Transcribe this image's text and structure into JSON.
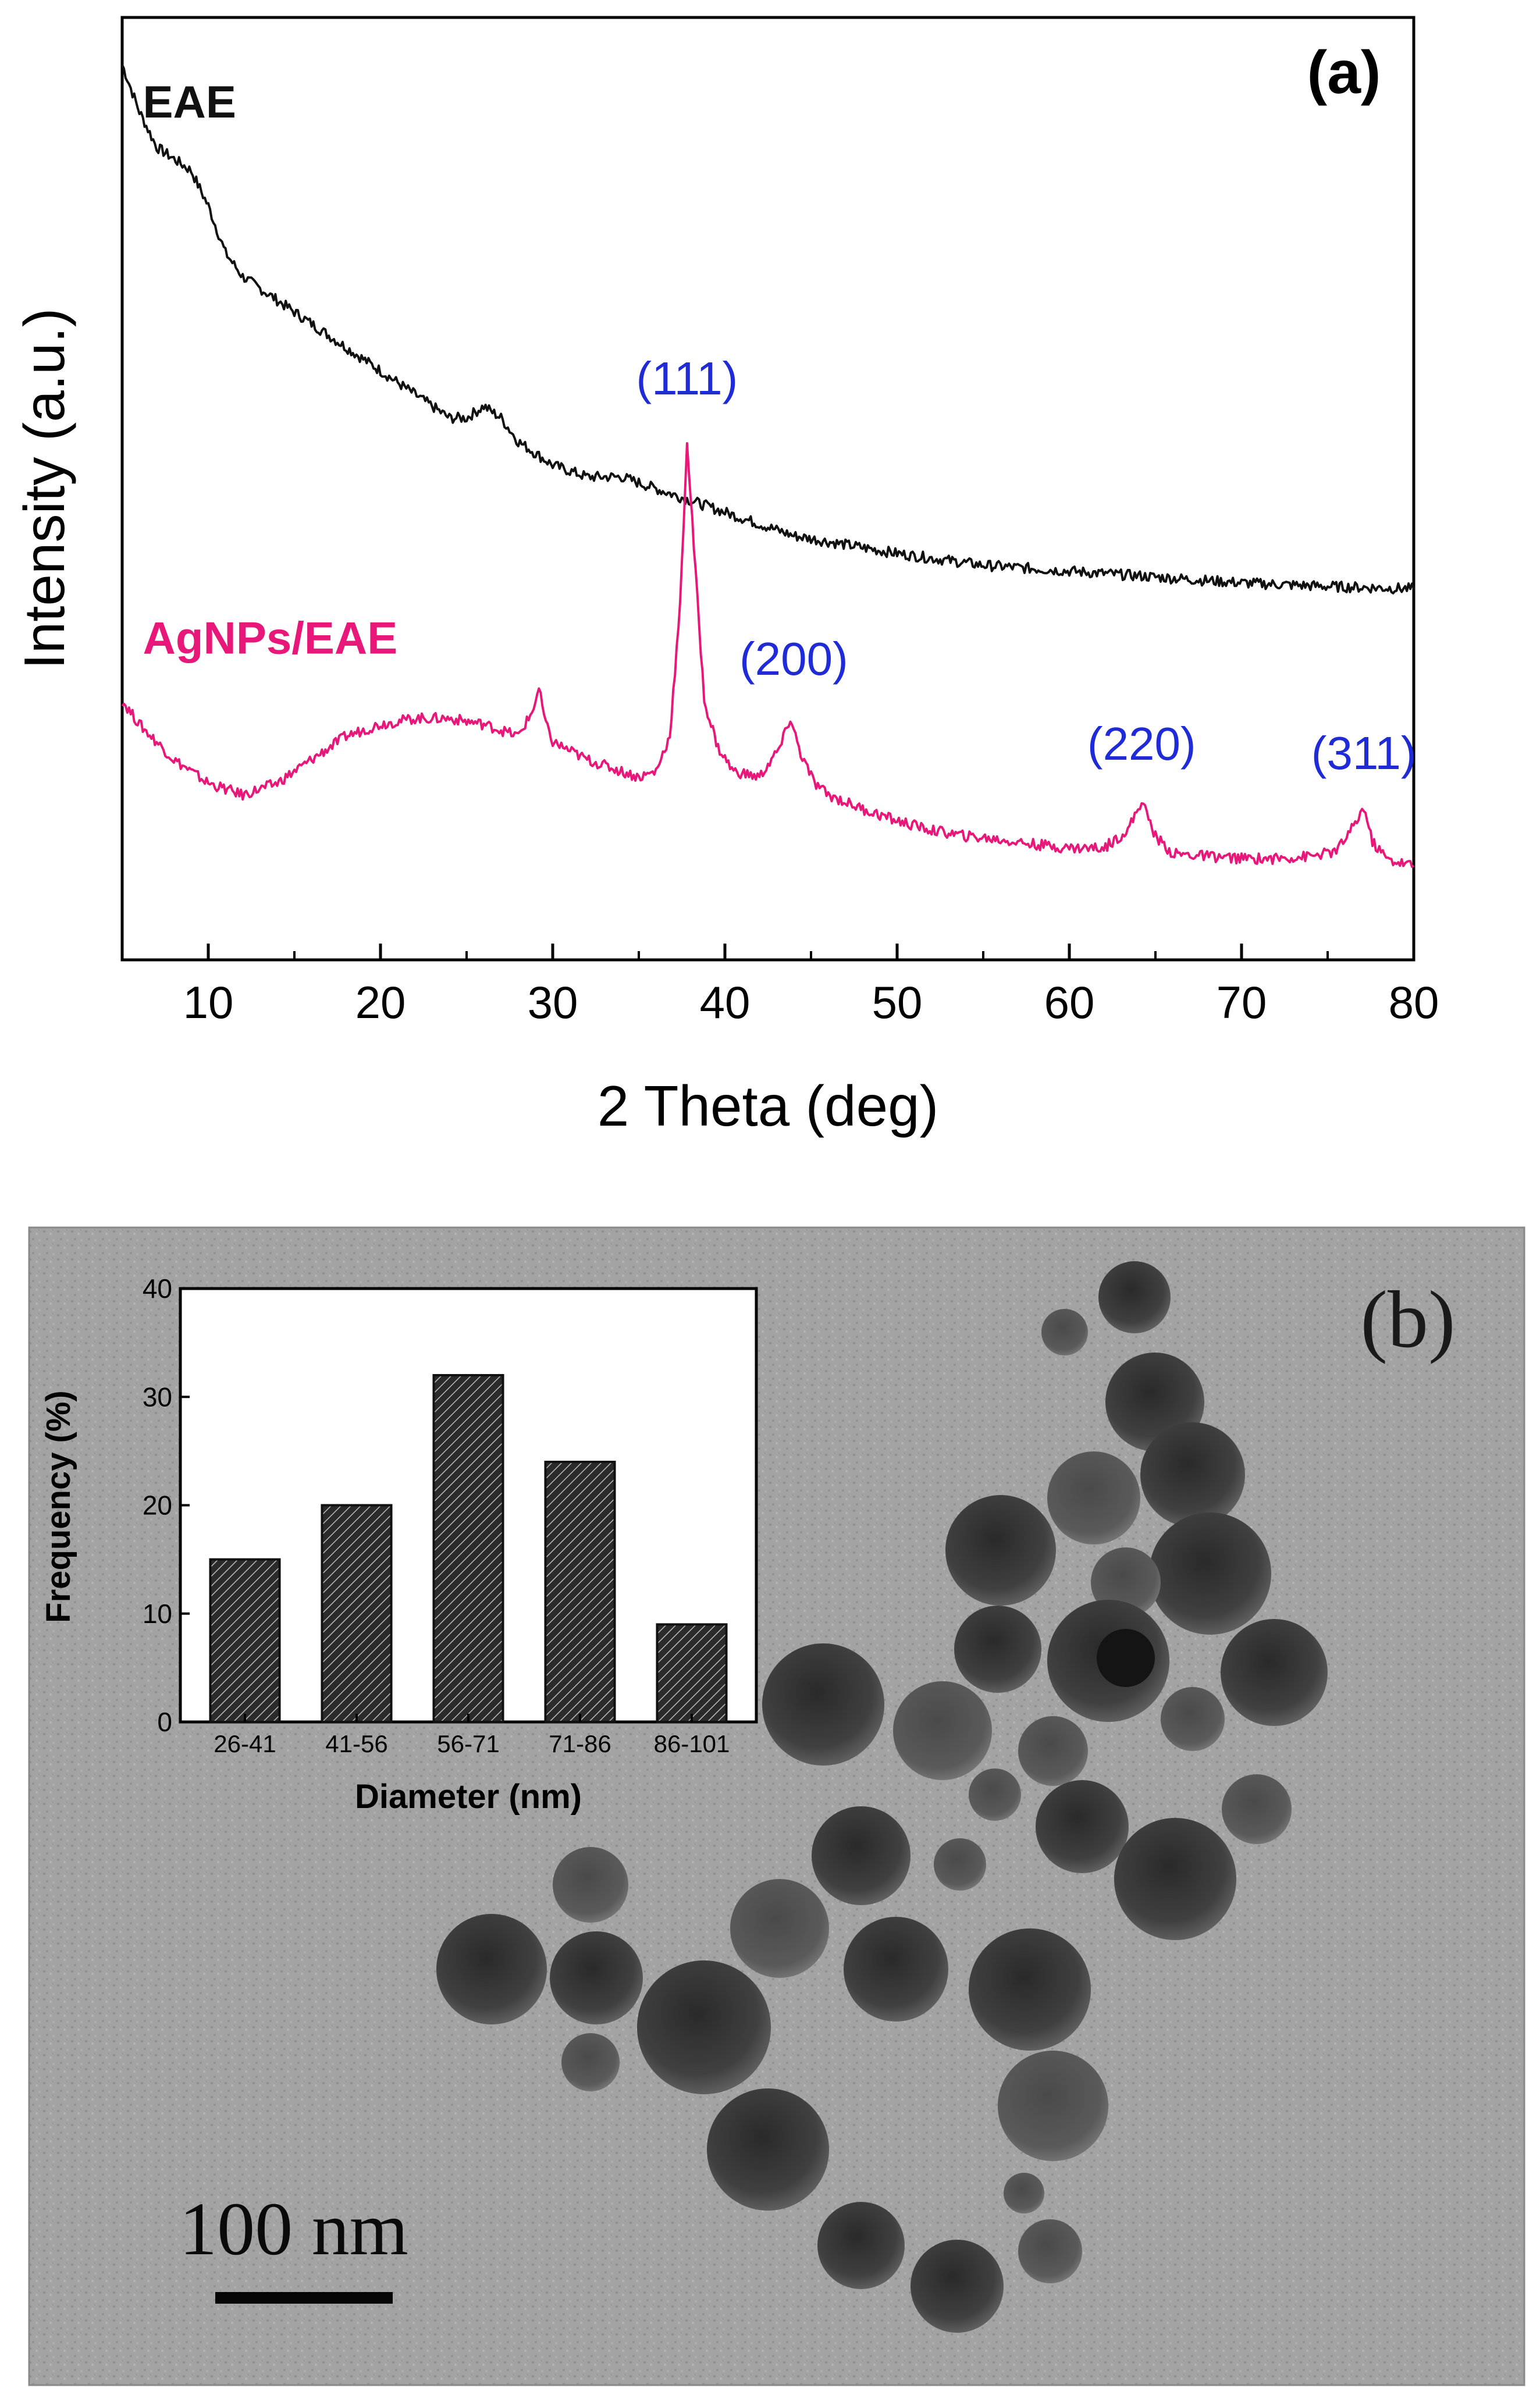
{
  "panel_a": {
    "label": "(a)",
    "colors": {
      "eae": "#111111",
      "agnps": "#e8187a",
      "peaks": "#1f2bd6",
      "axis": "#000000"
    }
  },
  "panel_b": {
    "label": "(b)",
    "scale_bar_label": "100 nm",
    "colors": {
      "background": "#a3a3a3",
      "particles": "#3a3a3a",
      "bars": "#2b2b2b",
      "hatch": "#bdbdbd"
    }
  },
  "chart_data": [
    {
      "type": "line",
      "title": "(a)",
      "xlabel": "2 Theta (deg)",
      "ylabel": "Intensity (a.u.)",
      "xlim": [
        5,
        80
      ],
      "xticks": [
        10,
        20,
        30,
        40,
        50,
        60,
        70,
        80
      ],
      "yticks_shown": false,
      "series": [
        {
          "name": "EAE",
          "color": "#111111",
          "x": [
            5,
            6,
            7,
            8,
            9,
            10,
            11,
            12,
            14,
            16,
            18,
            20,
            22,
            24,
            25,
            26,
            27,
            28,
            30,
            32,
            34,
            36,
            38,
            40,
            42,
            44,
            46,
            48,
            50,
            55,
            60,
            65,
            70,
            75,
            80
          ],
          "y": [
            96,
            92,
            89,
            88,
            87,
            84,
            80,
            78,
            76,
            74,
            72,
            70,
            68,
            66,
            66,
            67,
            66,
            64,
            62,
            61,
            61,
            60,
            59,
            58,
            57,
            56,
            55.5,
            55,
            54.5,
            53.5,
            53,
            52.5,
            52,
            51.7,
            51.5
          ]
        },
        {
          "name": "AgNPs/EAE",
          "color": "#e8187a",
          "x": [
            5,
            6,
            8,
            10,
            12,
            14,
            16,
            18,
            20,
            22,
            24,
            26,
            28,
            28.8,
            29.2,
            29.6,
            30,
            32,
            34,
            35,
            36,
            36.8,
            37.4,
            37.8,
            38.2,
            38.8,
            39.6,
            40.5,
            42,
            43.2,
            43.8,
            44.4,
            45.2,
            46,
            48,
            50,
            52,
            54,
            56,
            58,
            60,
            62,
            63.4,
            64.2,
            65,
            66,
            68,
            70,
            72,
            74,
            75.5,
            76.6,
            77.1,
            77.6,
            78.5,
            80
          ],
          "y": [
            42,
            40,
            37,
            35,
            34,
            35,
            37,
            39,
            40,
            40.5,
            40.5,
            40,
            39,
            41,
            43,
            40,
            38.5,
            37,
            36,
            35.5,
            36,
            39,
            50,
            64,
            55,
            42,
            38,
            36,
            35.5,
            38,
            40.5,
            37.5,
            35,
            34,
            32.8,
            31.8,
            31,
            30.5,
            30.2,
            29.8,
            29.5,
            29.5,
            31,
            33.5,
            30.5,
            29,
            28.8,
            28.6,
            28.6,
            28.8,
            29.2,
            31.5,
            33,
            30,
            28.5,
            28
          ]
        }
      ],
      "annotations": [
        {
          "text": "EAE",
          "color": "#111111",
          "x": 6.2,
          "y": 91.5
        },
        {
          "text": "AgNPs/EAE",
          "color": "#e8187a",
          "x": 6.2,
          "y": 46
        },
        {
          "text": "(111)",
          "color": "#1f2bd6",
          "x": 37.8,
          "y": 68
        },
        {
          "text": "(200)",
          "color": "#1f2bd6",
          "x": 44,
          "y": 44.2
        },
        {
          "text": "(220)",
          "color": "#1f2bd6",
          "x": 64.2,
          "y": 37
        },
        {
          "text": "(311)",
          "color": "#1f2bd6",
          "x": 77.1,
          "y": 36.2
        }
      ],
      "ylim": [
        20,
        100
      ]
    },
    {
      "type": "bar",
      "title": "",
      "categories": [
        "26-41",
        "41-56",
        "56-71",
        "71-86",
        "86-101"
      ],
      "values": [
        15,
        20,
        32,
        24,
        9
      ],
      "xlabel": "Diameter (nm)",
      "ylabel": "Frequency (%)",
      "ylim": [
        0,
        40
      ],
      "yticks": [
        0,
        10,
        20,
        30,
        40
      ],
      "bar_style": "hatched"
    }
  ]
}
